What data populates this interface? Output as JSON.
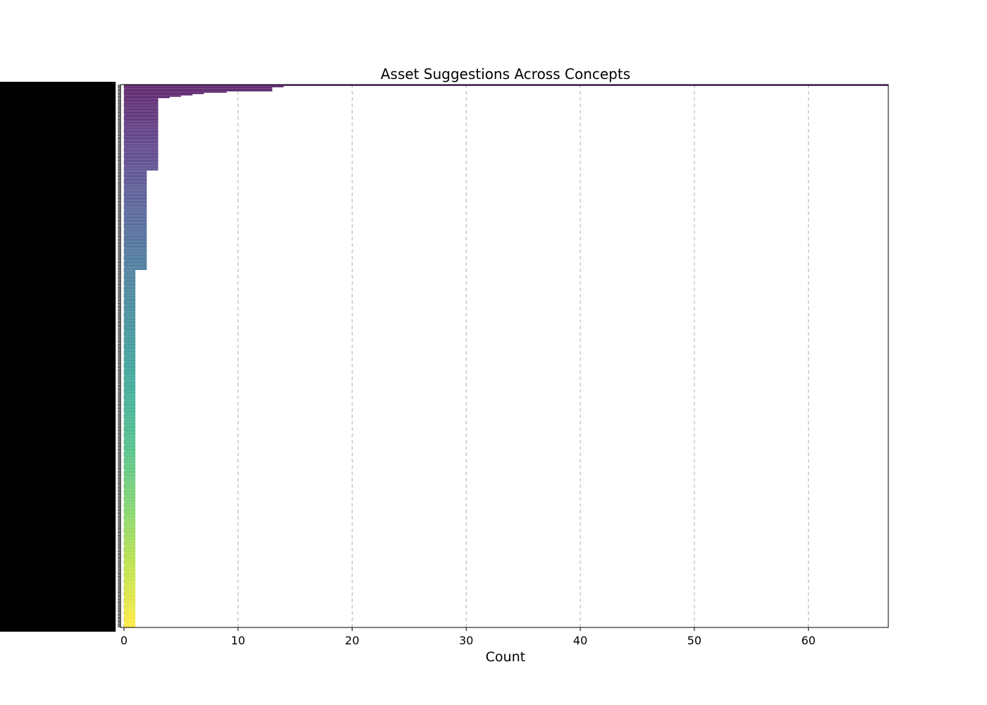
{
  "chart_data": {
    "type": "bar",
    "orientation": "horizontal",
    "title": "Asset Suggestions Across Concepts",
    "xlabel": "Count",
    "ylabel": "",
    "xlim": [
      -0.3,
      67
    ],
    "xticks": [
      0,
      10,
      20,
      30,
      40,
      50,
      60
    ],
    "grid": "x-dashed",
    "colormap": "viridis",
    "categories_note": "Category tick labels on the y-axis are illegible (overlapping) in the source image",
    "values": [
      67,
      14,
      13,
      13,
      13,
      9,
      7,
      6,
      5,
      4,
      3,
      3,
      3,
      3,
      3,
      3,
      3,
      3,
      3,
      3,
      3,
      3,
      3,
      3,
      3,
      3,
      3,
      3,
      3,
      3,
      3,
      3,
      3,
      3,
      3,
      3,
      3,
      3,
      3,
      3,
      3,
      3,
      3,
      3,
      3,
      3,
      3,
      3,
      3,
      3,
      3,
      3,
      3,
      3,
      3,
      3,
      3,
      3,
      3,
      3,
      3,
      3,
      3,
      2,
      2,
      2,
      2,
      2,
      2,
      2,
      2,
      2,
      2,
      2,
      2,
      2,
      2,
      2,
      2,
      2,
      2,
      2,
      2,
      2,
      2,
      2,
      2,
      2,
      2,
      2,
      2,
      2,
      2,
      2,
      2,
      2,
      2,
      2,
      2,
      2,
      2,
      2,
      2,
      2,
      2,
      2,
      2,
      2,
      2,
      2,
      2,
      2,
      2,
      2,
      2,
      2,
      2,
      2,
      2,
      2,
      2,
      2,
      2,
      2,
      2,
      2,
      2,
      2,
      2,
      2,
      2,
      2,
      2,
      2,
      2,
      2,
      1,
      1,
      1,
      1,
      1,
      1,
      1,
      1,
      1,
      1,
      1,
      1,
      1,
      1,
      1,
      1,
      1,
      1,
      1,
      1,
      1,
      1,
      1,
      1,
      1,
      1,
      1,
      1,
      1,
      1,
      1,
      1,
      1,
      1,
      1,
      1,
      1,
      1,
      1,
      1,
      1,
      1,
      1,
      1,
      1,
      1,
      1,
      1,
      1,
      1,
      1,
      1,
      1,
      1,
      1,
      1,
      1,
      1,
      1,
      1,
      1,
      1,
      1,
      1,
      1,
      1,
      1,
      1,
      1,
      1,
      1,
      1,
      1,
      1,
      1,
      1,
      1,
      1,
      1,
      1,
      1,
      1,
      1,
      1,
      1,
      1,
      1,
      1,
      1,
      1,
      1,
      1,
      1,
      1,
      1,
      1,
      1,
      1,
      1,
      1,
      1,
      1,
      1,
      1,
      1,
      1,
      1,
      1,
      1,
      1,
      1,
      1,
      1,
      1,
      1,
      1,
      1,
      1,
      1,
      1,
      1,
      1,
      1,
      1,
      1,
      1,
      1,
      1,
      1,
      1,
      1,
      1,
      1,
      1,
      1,
      1,
      1,
      1,
      1,
      1,
      1,
      1,
      1,
      1,
      1,
      1,
      1,
      1,
      1,
      1,
      1,
      1,
      1,
      1,
      1,
      1,
      1,
      1,
      1,
      1,
      1,
      1,
      1,
      1,
      1,
      1,
      1,
      1,
      1,
      1,
      1,
      1,
      1,
      1,
      1,
      1,
      1,
      1,
      1,
      1,
      1,
      1,
      1,
      1,
      1,
      1,
      1,
      1,
      1,
      1,
      1,
      1,
      1,
      1,
      1,
      1,
      1,
      1,
      1,
      1,
      1,
      1,
      1,
      1,
      1,
      1,
      1,
      1,
      1,
      1,
      1,
      1,
      1,
      1,
      1,
      1,
      1,
      1,
      1,
      1,
      1,
      1,
      1,
      1,
      1,
      1,
      1,
      1,
      1,
      1,
      1,
      1,
      1,
      1,
      1,
      1,
      1,
      1,
      1,
      1,
      1,
      1,
      1,
      1,
      1,
      1,
      1,
      1,
      1,
      1,
      1,
      1,
      1,
      1,
      1,
      1,
      1,
      1,
      1,
      1,
      1,
      1
    ]
  }
}
